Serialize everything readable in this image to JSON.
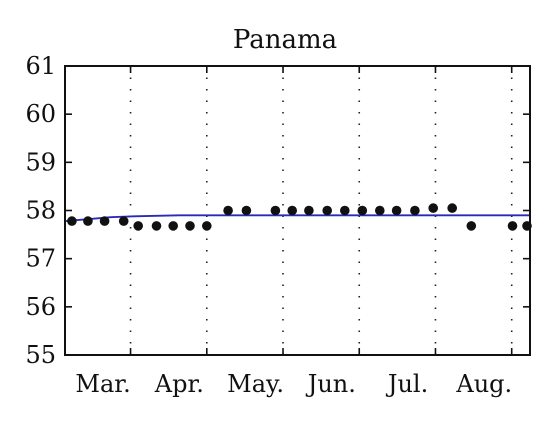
{
  "chart_data": {
    "type": "scatter",
    "title": "Panama",
    "xlabel": "",
    "ylabel": "",
    "ylim": [
      55,
      61
    ],
    "yticks": [
      55,
      56,
      57,
      58,
      59,
      60,
      61
    ],
    "xlim": [
      0,
      6.1
    ],
    "month_ticks": [
      {
        "label": "Mar.",
        "x": 0.5
      },
      {
        "label": "Apr.",
        "x": 1.5
      },
      {
        "label": "May.",
        "x": 2.5
      },
      {
        "label": "Jun.",
        "x": 3.5
      },
      {
        "label": "Jul.",
        "x": 4.5
      },
      {
        "label": "Aug.",
        "x": 5.5
      }
    ],
    "month_gridlines": [
      0.86,
      1.86,
      2.86,
      3.86,
      4.86,
      5.86
    ],
    "grid": "vertical-dotted",
    "series": [
      {
        "type": "scatter",
        "color": "#111111",
        "x": [
          0.09,
          0.3,
          0.52,
          0.77,
          0.96,
          1.2,
          1.42,
          1.64,
          1.86,
          2.14,
          2.38,
          2.76,
          2.98,
          3.2,
          3.44,
          3.67,
          3.9,
          4.13,
          4.35,
          4.59,
          4.83,
          5.08,
          5.33,
          5.87,
          6.06
        ],
        "y": [
          57.78,
          57.78,
          57.78,
          57.78,
          57.68,
          57.68,
          57.68,
          57.68,
          57.68,
          58.0,
          58.0,
          58.0,
          58.0,
          58.0,
          58.0,
          58.0,
          58.0,
          58.0,
          58.0,
          58.0,
          58.05,
          58.05,
          57.68,
          57.68,
          57.68
        ]
      },
      {
        "type": "line",
        "color": "#2a2ab8",
        "x": [
          0,
          0.3,
          0.6,
          0.9,
          1.2,
          1.5,
          1.8,
          2.2,
          2.6,
          3.0,
          3.5,
          4.0,
          4.5,
          5.0,
          5.5,
          6.1
        ],
        "y": [
          57.78,
          57.82,
          57.86,
          57.88,
          57.89,
          57.9,
          57.9,
          57.9,
          57.9,
          57.9,
          57.9,
          57.9,
          57.9,
          57.9,
          57.9,
          57.9
        ]
      }
    ]
  }
}
